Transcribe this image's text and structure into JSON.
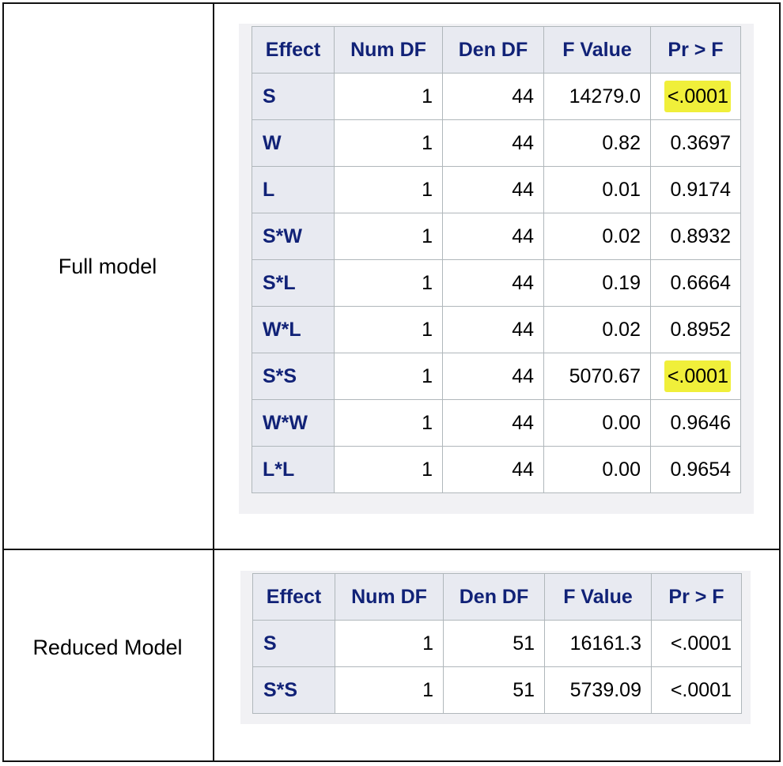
{
  "rows": {
    "full_label": "Full model",
    "reduced_label": "Reduced Model"
  },
  "headers": [
    "Effect",
    "Num DF",
    "Den DF",
    "F Value",
    "Pr > F"
  ],
  "full_model": [
    {
      "effect": "S",
      "num_df": "1",
      "den_df": "44",
      "f_value": "14279.0",
      "p": "<.0001",
      "highlight": true
    },
    {
      "effect": "W",
      "num_df": "1",
      "den_df": "44",
      "f_value": "0.82",
      "p": "0.3697"
    },
    {
      "effect": "L",
      "num_df": "1",
      "den_df": "44",
      "f_value": "0.01",
      "p": "0.9174"
    },
    {
      "effect": "S*W",
      "num_df": "1",
      "den_df": "44",
      "f_value": "0.02",
      "p": "0.8932"
    },
    {
      "effect": "S*L",
      "num_df": "1",
      "den_df": "44",
      "f_value": "0.19",
      "p": "0.6664"
    },
    {
      "effect": "W*L",
      "num_df": "1",
      "den_df": "44",
      "f_value": "0.02",
      "p": "0.8952"
    },
    {
      "effect": "S*S",
      "num_df": "1",
      "den_df": "44",
      "f_value": "5070.67",
      "p": "<.0001",
      "highlight": true
    },
    {
      "effect": "W*W",
      "num_df": "1",
      "den_df": "44",
      "f_value": "0.00",
      "p": "0.9646"
    },
    {
      "effect": "L*L",
      "num_df": "1",
      "den_df": "44",
      "f_value": "0.00",
      "p": "0.9654"
    }
  ],
  "reduced_model": [
    {
      "effect": "S",
      "num_df": "1",
      "den_df": "51",
      "f_value": "16161.3",
      "p": "<.0001"
    },
    {
      "effect": "S*S",
      "num_df": "1",
      "den_df": "51",
      "f_value": "5739.09",
      "p": "<.0001"
    }
  ],
  "colors": {
    "header_text": "#112277",
    "header_bg": "#e8eaf1",
    "highlight": "#f0ef3a"
  }
}
